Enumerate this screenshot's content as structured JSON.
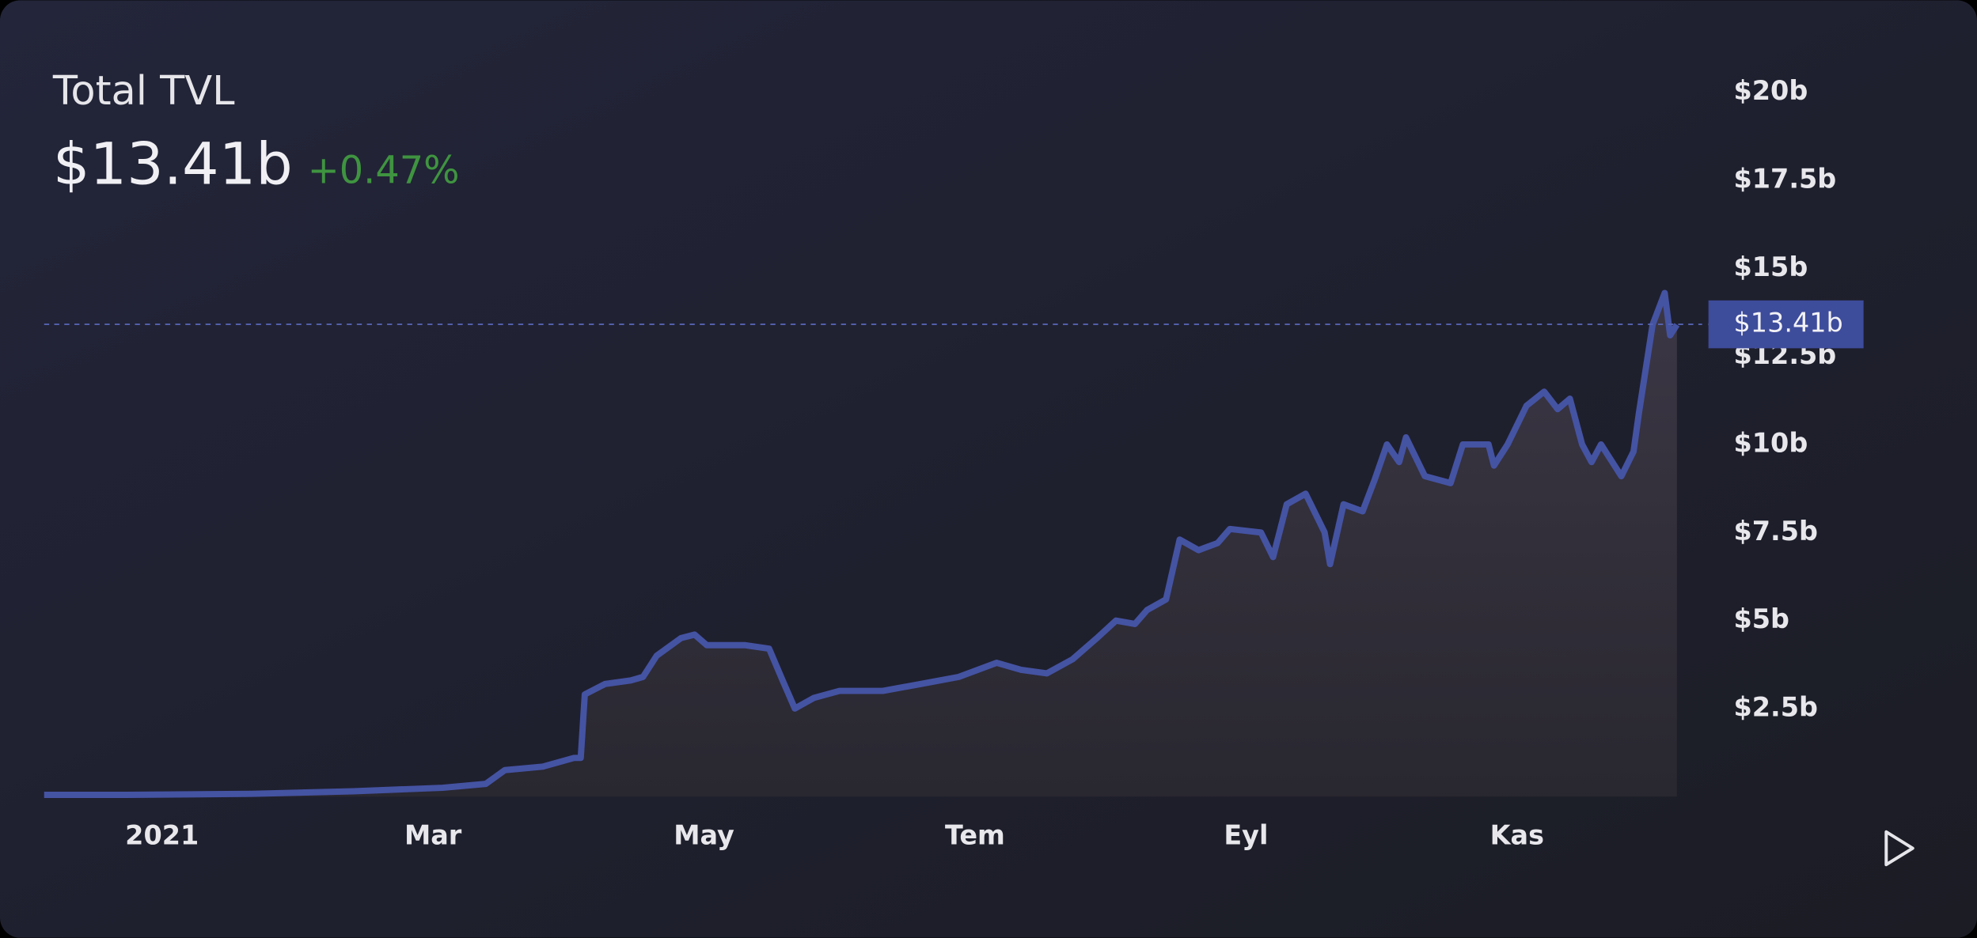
{
  "chart_data": {
    "type": "area",
    "title": "Total TVL",
    "current": {
      "value": 13.41,
      "label": "$13.41b"
    },
    "change": "+0.47%",
    "color": "#4553a3",
    "x": [
      -0.87,
      -0.26,
      0.67,
      1.41,
      2.07,
      2.39,
      2.53,
      2.81,
      3.04,
      3.09,
      3.12,
      3.27,
      3.46,
      3.55,
      3.65,
      3.83,
      3.93,
      4.02,
      4.3,
      4.48,
      4.58,
      4.67,
      4.81,
      5.0,
      5.32,
      5.6,
      5.88,
      6.16,
      6.34,
      6.53,
      6.72,
      6.9,
      7.04,
      7.18,
      7.27,
      7.41,
      7.51,
      7.65,
      7.79,
      7.88,
      8.11,
      8.2,
      8.3,
      8.44,
      8.58,
      8.62,
      8.72,
      8.86,
      8.95,
      9.04,
      9.13,
      9.18,
      9.32,
      9.51,
      9.6,
      9.79,
      9.83,
      9.93,
      10.07,
      10.2,
      10.3,
      10.39,
      10.48,
      10.55,
      10.62,
      10.77,
      10.86,
      10.9,
      11.0,
      11.09,
      11.13,
      11.18
    ],
    "values": [
      0.05,
      0.05,
      0.08,
      0.15,
      0.25,
      0.36,
      0.75,
      0.85,
      1.1,
      1.1,
      2.9,
      3.2,
      3.3,
      3.4,
      4.0,
      4.5,
      4.6,
      4.3,
      4.3,
      4.2,
      3.3,
      2.5,
      2.8,
      3.0,
      3.0,
      3.2,
      3.4,
      3.8,
      3.6,
      3.5,
      3.9,
      4.5,
      5.0,
      4.9,
      5.3,
      5.6,
      7.3,
      7.0,
      7.2,
      7.6,
      7.5,
      6.8,
      8.3,
      8.6,
      7.5,
      6.6,
      8.3,
      8.1,
      9.0,
      10.0,
      9.5,
      10.2,
      9.1,
      8.9,
      10.0,
      10.0,
      9.4,
      10.0,
      11.1,
      11.5,
      11.0,
      11.3,
      10.0,
      9.5,
      10.0,
      9.1,
      9.8,
      10.9,
      13.4,
      14.3,
      13.1,
      13.4
    ],
    "xlim": [
      -0.87,
      11.18
    ],
    "xticks": [
      {
        "value": 0,
        "label": "2021"
      },
      {
        "value": 2,
        "label": "Mar"
      },
      {
        "value": 4,
        "label": "May"
      },
      {
        "value": 6,
        "label": "Tem"
      },
      {
        "value": 8,
        "label": "Eyl"
      },
      {
        "value": 10,
        "label": "Kas"
      }
    ],
    "ylim": [
      0,
      20
    ],
    "yticks": [
      {
        "value": 2.5,
        "label": "$2.5b"
      },
      {
        "value": 5,
        "label": "$5b"
      },
      {
        "value": 7.5,
        "label": "$7.5b"
      },
      {
        "value": 10,
        "label": "$10b"
      },
      {
        "value": 12.5,
        "label": "$12.5b"
      },
      {
        "value": 15,
        "label": "$15b"
      },
      {
        "value": 17.5,
        "label": "$17.5b"
      },
      {
        "value": 20,
        "label": "$20b"
      }
    ]
  }
}
